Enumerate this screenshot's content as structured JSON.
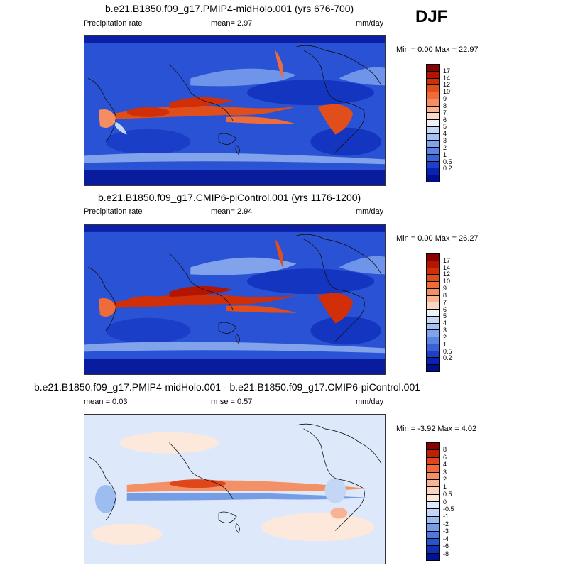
{
  "season": "DJF",
  "panels": [
    {
      "title": "b.e21.B1850.f09_g17.PMIP4-midHolo.001 (yrs 676-700)",
      "left_label": "Precipitation rate",
      "center_label": "mean=   2.97",
      "units": "mm/day",
      "minmax": "Min =   0.00 Max =  22.97",
      "colorbar": {
        "colors": [
          "#8b0000",
          "#b41500",
          "#d02f08",
          "#e04e1c",
          "#ee6c3a",
          "#f48e62",
          "#f8b392",
          "#fcd7c4",
          "#eef1fa",
          "#c6d8f6",
          "#a5c0f2",
          "#80a3eb",
          "#5a83e2",
          "#3a62d6",
          "#1e3fc6",
          "#0a22b0",
          "#000f8f"
        ],
        "labels": [
          "17",
          "14",
          "12",
          "10",
          "9",
          "8",
          "7",
          "6",
          "5",
          "4",
          "3",
          "2",
          "1",
          "0.5",
          "0.2"
        ]
      }
    },
    {
      "title": "b.e21.B1850.f09_g17.CMIP6-piControl.001 (yrs 1176-1200)",
      "left_label": "Precipitation rate",
      "center_label": "mean=   2.94",
      "units": "mm/day",
      "minmax": "Min =   0.00 Max =  26.27",
      "colorbar": {
        "colors": [
          "#8b0000",
          "#b41500",
          "#d02f08",
          "#e04e1c",
          "#ee6c3a",
          "#f48e62",
          "#f8b392",
          "#fcd7c4",
          "#eef1fa",
          "#c6d8f6",
          "#a5c0f2",
          "#80a3eb",
          "#5a83e2",
          "#3a62d6",
          "#1e3fc6",
          "#0a22b0",
          "#000f8f"
        ],
        "labels": [
          "17",
          "14",
          "12",
          "10",
          "9",
          "8",
          "7",
          "6",
          "5",
          "4",
          "3",
          "2",
          "1",
          "0.5",
          "0.2"
        ]
      }
    },
    {
      "title": "b.e21.B1850.f09_g17.PMIP4-midHolo.001 - b.e21.B1850.f09_g17.CMIP6-piControl.001",
      "left_label": "mean =   0.03",
      "center_label": "rmse =   0.57",
      "units": "mm/day",
      "minmax": "Min =  -3.92 Max =   4.02",
      "colorbar": {
        "colors": [
          "#8b0000",
          "#c01f00",
          "#e0461c",
          "#f06a3c",
          "#f49066",
          "#f8b396",
          "#fcd4be",
          "#fde9dc",
          "#dde9fa",
          "#c4d6f6",
          "#9dbcf0",
          "#769ce6",
          "#4e78dc",
          "#2a52cc",
          "#0f2fb4",
          "#00128f"
        ],
        "labels": [
          "8",
          "6",
          "4",
          "3",
          "2",
          "1",
          "0.5",
          "0",
          "-0.5",
          "-1",
          "-2",
          "-3",
          "-4",
          "-6",
          "-8"
        ]
      }
    }
  ]
}
